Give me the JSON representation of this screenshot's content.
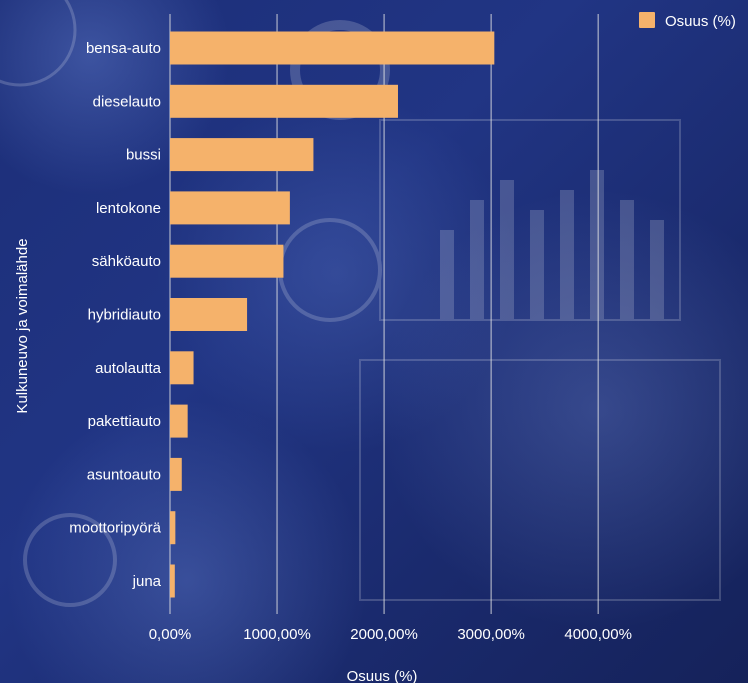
{
  "chart_data": {
    "type": "bar",
    "orientation": "horizontal",
    "categories": [
      "bensa-auto",
      "dieselauto",
      "bussi",
      "lentokone",
      "sähköauto",
      "hybridiauto",
      "autolautta",
      "pakettiauto",
      "asuntoauto",
      "moottoripyörä",
      "juna"
    ],
    "series": [
      {
        "name": "Osuus (%)",
        "values": [
          3030,
          2130,
          1340,
          1120,
          1060,
          720,
          220,
          165,
          110,
          50,
          45
        ],
        "color": "#f5b26b"
      }
    ],
    "xlabel": "Osuus (%)",
    "ylabel": "Kulkuneuvo ja voimalähde",
    "xlim": [
      0,
      5400
    ],
    "xticks": [
      0,
      1000,
      2000,
      3000,
      4000
    ],
    "xtick_labels": [
      "0,00%",
      "1000,00%",
      "2000,00%",
      "3000,00%",
      "4000,00%"
    ],
    "grid": true,
    "legend_position": "top-right",
    "grid_color": "#e6e6e6"
  }
}
